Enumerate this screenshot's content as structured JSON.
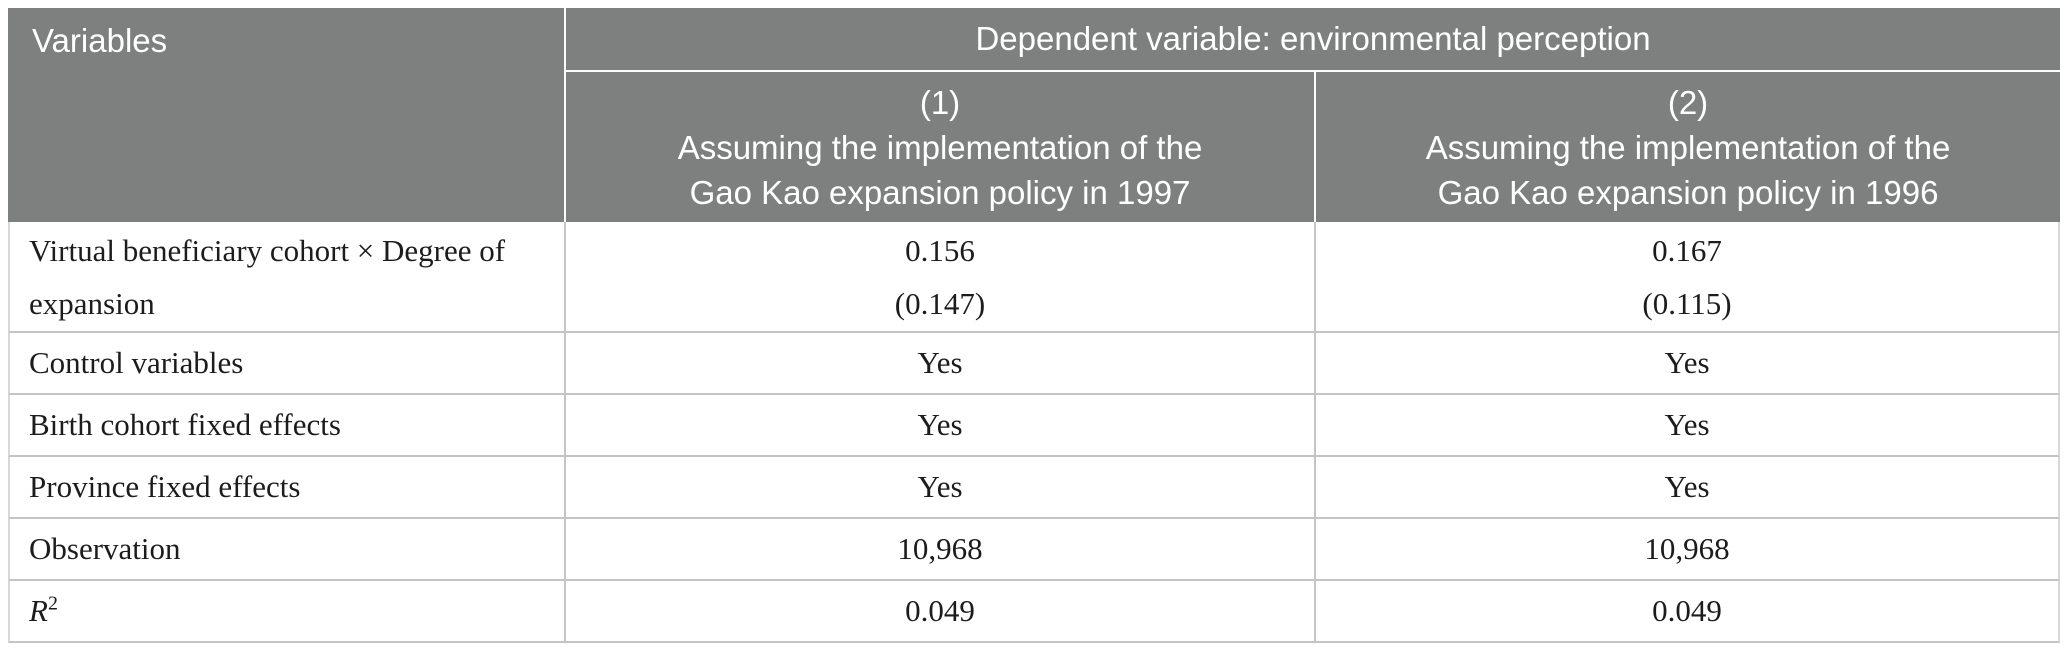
{
  "table": {
    "header": {
      "variables_label": "Variables",
      "banner": "Dependent variable: environmental perception",
      "columns": [
        {
          "number": "(1)",
          "title_line1": "Assuming the implementation of the",
          "title_line2": "Gao Kao expansion policy in 1997"
        },
        {
          "number": "(2)",
          "title_line1": "Assuming the implementation of the",
          "title_line2": "Gao Kao expansion policy in 1996"
        }
      ]
    },
    "rows": [
      {
        "label_line1": "Virtual beneficiary cohort × Degree of",
        "label_line2": "expansion",
        "col1_estimate": "0.156",
        "col1_se": "(0.147)",
        "col2_estimate": "0.167",
        "col2_se": "(0.115)"
      },
      {
        "label": "Control variables",
        "col1": "Yes",
        "col2": "Yes"
      },
      {
        "label": "Birth cohort fixed effects",
        "col1": "Yes",
        "col2": "Yes"
      },
      {
        "label": "Province fixed effects",
        "col1": "Yes",
        "col2": "Yes"
      },
      {
        "label": "Observation",
        "col1": "10,968",
        "col2": "10,968"
      },
      {
        "label_base": "R",
        "label_superscript": "2",
        "col1": "0.049",
        "col2": "0.049"
      }
    ],
    "colors": {
      "header_background": "#7e8080",
      "header_text": "#ffffff",
      "body_text": "#1c1c1c",
      "grid_line": "#c4c4c4"
    }
  }
}
